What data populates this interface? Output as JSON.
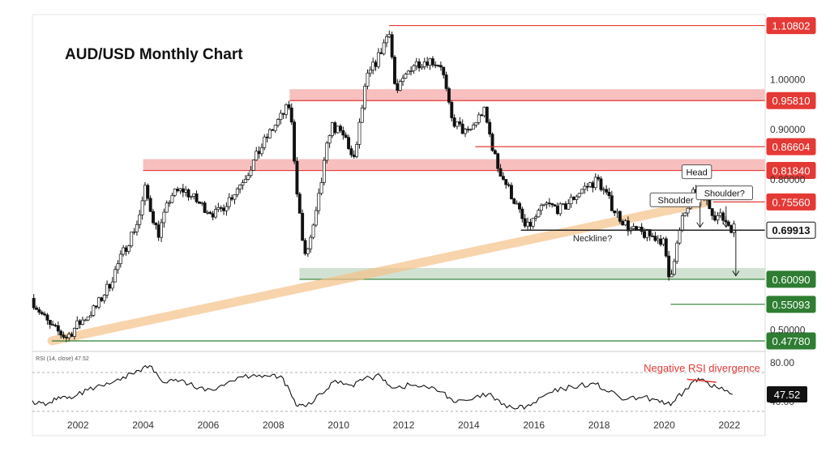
{
  "chart_data": [
    {
      "type": "candlestick",
      "title": "AUD/USD Monthly Chart",
      "ylim": [
        0.46,
        1.13
      ],
      "x_range": [
        2000.6,
        2023.1
      ],
      "y_ticks": [
        "1.00000",
        "0.90000",
        "0.80000",
        "0.50000"
      ],
      "x_ticks": [
        "2002",
        "2004",
        "2006",
        "2008",
        "2010",
        "2012",
        "2014",
        "2016",
        "2018",
        "2020",
        "2022"
      ],
      "price_path": [
        [
          2000.6,
          0.563
        ],
        [
          2001.2,
          0.505
        ],
        [
          2001.7,
          0.485
        ],
        [
          2002.0,
          0.508
        ],
        [
          2002.6,
          0.545
        ],
        [
          2003.0,
          0.59
        ],
        [
          2003.5,
          0.665
        ],
        [
          2003.9,
          0.72
        ],
        [
          2004.1,
          0.78
        ],
        [
          2004.5,
          0.69
        ],
        [
          2004.9,
          0.77
        ],
        [
          2005.3,
          0.78
        ],
        [
          2005.8,
          0.75
        ],
        [
          2006.3,
          0.73
        ],
        [
          2006.9,
          0.78
        ],
        [
          2007.3,
          0.82
        ],
        [
          2007.8,
          0.88
        ],
        [
          2008.0,
          0.9
        ],
        [
          2008.55,
          0.95
        ],
        [
          2008.75,
          0.79
        ],
        [
          2009.0,
          0.64
        ],
        [
          2009.3,
          0.71
        ],
        [
          2009.8,
          0.91
        ],
        [
          2010.3,
          0.88
        ],
        [
          2010.5,
          0.83
        ],
        [
          2010.9,
          1.0
        ],
        [
          2011.3,
          1.05
        ],
        [
          2011.6,
          1.1
        ],
        [
          2011.8,
          0.97
        ],
        [
          2012.3,
          1.03
        ],
        [
          2012.8,
          1.04
        ],
        [
          2013.2,
          1.03
        ],
        [
          2013.5,
          0.92
        ],
        [
          2014.0,
          0.89
        ],
        [
          2014.5,
          0.94
        ],
        [
          2014.9,
          0.83
        ],
        [
          2015.5,
          0.75
        ],
        [
          2015.8,
          0.7
        ],
        [
          2016.4,
          0.75
        ],
        [
          2016.9,
          0.74
        ],
        [
          2017.5,
          0.78
        ],
        [
          2018.0,
          0.8
        ],
        [
          2018.5,
          0.74
        ],
        [
          2019.0,
          0.7
        ],
        [
          2019.5,
          0.69
        ],
        [
          2020.0,
          0.68
        ],
        [
          2020.2,
          0.6
        ],
        [
          2020.6,
          0.72
        ],
        [
          2021.0,
          0.78
        ],
        [
          2021.2,
          0.77
        ],
        [
          2021.6,
          0.73
        ],
        [
          2021.9,
          0.72
        ],
        [
          2022.1,
          0.705
        ]
      ],
      "levels": [
        {
          "label": "1.10802",
          "value": 1.10802,
          "color": "#e53935",
          "kind": "line",
          "from": 2011.55
        },
        {
          "label": "0.95810",
          "value": 0.9581,
          "color": "#e53935",
          "kind": "zone",
          "from": 2008.5
        },
        {
          "label": "0.86604",
          "value": 0.86604,
          "color": "#e53935",
          "kind": "line",
          "from": 2014.2
        },
        {
          "label": "0.81840",
          "value": 0.8184,
          "color": "#e53935",
          "kind": "zone",
          "from": 2004.0
        },
        {
          "label": "0.75560",
          "value": 0.7556,
          "color": "#e53935",
          "kind": "line",
          "from": 2021.5
        },
        {
          "label": "0.69913",
          "value": 0.69913,
          "color": "#222222",
          "kind": "line",
          "from": 2015.6
        },
        {
          "label": "0.60090",
          "value": 0.6009,
          "color": "#2e7d32",
          "kind": "zone",
          "from": 2008.8
        },
        {
          "label": "0.55093",
          "value": 0.55093,
          "color": "#2e7d32",
          "kind": "line",
          "from": 2020.2
        },
        {
          "label": "0.47780",
          "value": 0.4778,
          "color": "#2e7d32",
          "kind": "line",
          "from": 2001.2
        }
      ],
      "trendline": {
        "from": [
          2001.2,
          0.478
        ],
        "to": [
          2021.3,
          0.755
        ],
        "color": "#f5c28a"
      },
      "annotations": [
        {
          "text": "Head",
          "x": 2021.0,
          "y": 0.815
        },
        {
          "text": "Shoulder",
          "x": 2020.35,
          "y": 0.759
        },
        {
          "text": "Shoulder?",
          "x": 2021.85,
          "y": 0.773
        },
        {
          "text": "Neckline?",
          "x": 2017.8,
          "y": 0.683
        }
      ],
      "arrows": [
        {
          "x": 2021.1,
          "from": 0.755,
          "to": 0.705
        },
        {
          "x": 2021.9,
          "from": 0.747,
          "to": 0.705
        },
        {
          "x": 2022.2,
          "from": 0.699,
          "to": 0.608
        }
      ]
    },
    {
      "type": "line",
      "title": "RSI (14, close) 47.52",
      "current_label": "47.52",
      "ylim": [
        25,
        90
      ],
      "y_ticks": [
        "80.00",
        "40.00"
      ],
      "levels": [
        70,
        30
      ],
      "annotation": "Negative RSI divergence",
      "divergence_line": {
        "from": [
          2020.7,
          63
        ],
        "to": [
          2021.6,
          60
        ]
      },
      "points": [
        [
          2000.6,
          41
        ],
        [
          2001.0,
          36
        ],
        [
          2001.4,
          45
        ],
        [
          2001.8,
          43
        ],
        [
          2002.3,
          52
        ],
        [
          2002.8,
          56
        ],
        [
          2003.3,
          62
        ],
        [
          2003.8,
          72
        ],
        [
          2004.2,
          77
        ],
        [
          2004.6,
          60
        ],
        [
          2005.0,
          63
        ],
        [
          2005.4,
          58
        ],
        [
          2005.9,
          51
        ],
        [
          2006.4,
          57
        ],
        [
          2006.9,
          65
        ],
        [
          2007.4,
          68
        ],
        [
          2007.9,
          66
        ],
        [
          2008.3,
          64
        ],
        [
          2008.7,
          36
        ],
        [
          2009.0,
          35
        ],
        [
          2009.5,
          48
        ],
        [
          2009.9,
          62
        ],
        [
          2010.4,
          57
        ],
        [
          2010.8,
          64
        ],
        [
          2011.3,
          66
        ],
        [
          2011.7,
          54
        ],
        [
          2012.2,
          57
        ],
        [
          2012.7,
          55
        ],
        [
          2013.2,
          50
        ],
        [
          2013.6,
          39
        ],
        [
          2014.1,
          42
        ],
        [
          2014.6,
          48
        ],
        [
          2015.0,
          37
        ],
        [
          2015.5,
          33
        ],
        [
          2015.9,
          36
        ],
        [
          2016.4,
          48
        ],
        [
          2016.9,
          53
        ],
        [
          2017.4,
          57
        ],
        [
          2017.9,
          58
        ],
        [
          2018.3,
          50
        ],
        [
          2018.8,
          42
        ],
        [
          2019.3,
          44
        ],
        [
          2019.8,
          42
        ],
        [
          2020.2,
          36
        ],
        [
          2020.6,
          50
        ],
        [
          2020.9,
          61
        ],
        [
          2021.2,
          63
        ],
        [
          2021.6,
          55
        ],
        [
          2022.1,
          47.5
        ]
      ]
    }
  ]
}
